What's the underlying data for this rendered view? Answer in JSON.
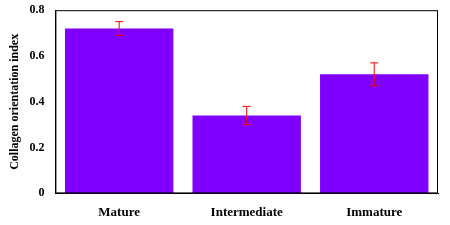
{
  "chart_data": {
    "type": "bar",
    "y_label": "Collagen orientation index",
    "categories": [
      "Mature",
      "Intermediate",
      "Immature"
    ],
    "values": [
      0.72,
      0.34,
      0.52
    ],
    "errors": [
      0.03,
      0.04,
      0.05
    ],
    "color": "#7f00ff",
    "ylim": [
      0,
      0.8
    ],
    "yticks": [
      0,
      0.2,
      0.4,
      0.6,
      0.8
    ],
    "grid": false
  }
}
